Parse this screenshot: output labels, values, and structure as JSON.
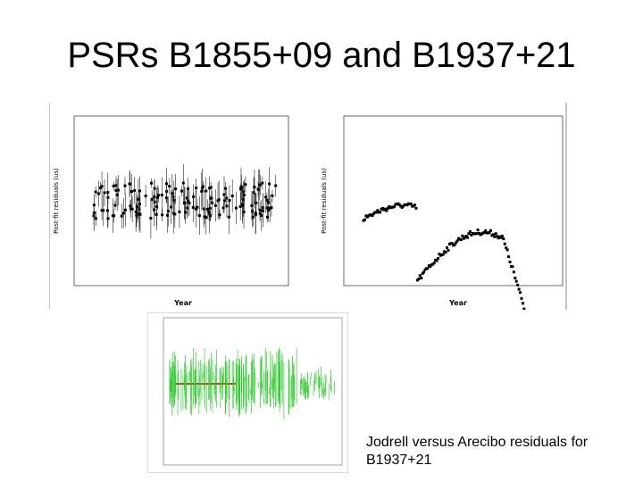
{
  "title": "PSRs B1855+09 and B1937+21",
  "plots": [
    {
      "x_label": "Year",
      "y_label": "Post-fit residuals (us)"
    },
    {
      "x_label": "Year",
      "y_label": "Post-fit residuals (us)"
    }
  ],
  "caption": "Jodrell versus Arecibo residuals for B1937+21"
}
